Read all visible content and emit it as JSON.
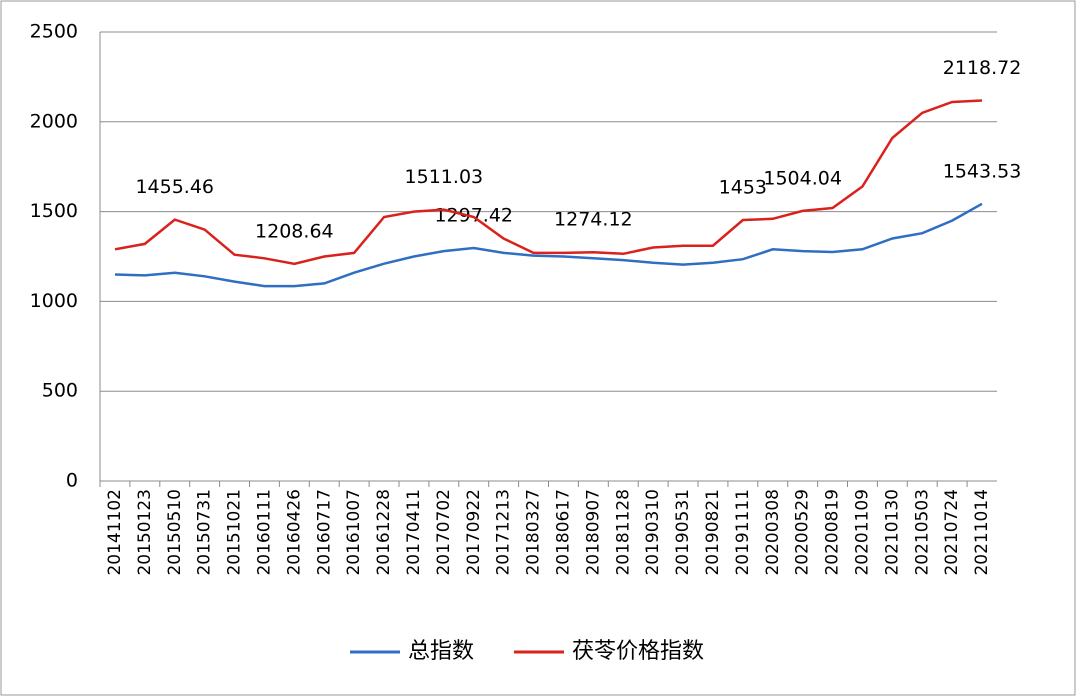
{
  "chart_data": {
    "type": "line",
    "categories": [
      "20141102",
      "20150123",
      "20150510",
      "20150731",
      "20151021",
      "20160111",
      "20160426",
      "20160717",
      "20161007",
      "20161228",
      "20170411",
      "20170702",
      "20170922",
      "20171213",
      "20180327",
      "20180617",
      "20180907",
      "20181128",
      "20190310",
      "20190531",
      "20190821",
      "20191111",
      "20200308",
      "20200529",
      "20200819",
      "20201109",
      "20210130",
      "20210503",
      "20210724",
      "20211014"
    ],
    "series": [
      {
        "name": "总指数",
        "color": "#2e6fc4",
        "label_color": "#2e6fc4",
        "values": [
          1150,
          1145,
          1160,
          1140,
          1110,
          1085,
          1085,
          1100,
          1160,
          1210,
          1250,
          1280,
          1297.42,
          1270,
          1255,
          1250,
          1240,
          1230,
          1215,
          1205,
          1215,
          1235,
          1290,
          1280,
          1275,
          1290,
          1350,
          1380,
          1450,
          1543.53
        ],
        "value_labels": [
          null,
          null,
          null,
          null,
          null,
          null,
          null,
          null,
          null,
          null,
          null,
          null,
          "1297.42",
          null,
          null,
          null,
          null,
          null,
          null,
          null,
          null,
          null,
          null,
          null,
          null,
          null,
          null,
          null,
          null,
          "1543.53"
        ]
      },
      {
        "name": "茯苓价格指数",
        "color": "#d9221c",
        "label_color": "#000000",
        "values": [
          1290,
          1320,
          1455.46,
          1400,
          1260,
          1240,
          1208.64,
          1250,
          1270,
          1470,
          1500,
          1511.03,
          1470,
          1350,
          1270,
          1270,
          1274.12,
          1265,
          1300,
          1310,
          1310,
          1453,
          1460,
          1504.04,
          1520,
          1640,
          1910,
          2050,
          2110,
          2118.72
        ],
        "value_labels": [
          null,
          null,
          "1455.46",
          null,
          null,
          null,
          "1208.64",
          null,
          null,
          null,
          null,
          "1511.03",
          null,
          null,
          null,
          null,
          "1274.12",
          null,
          null,
          null,
          null,
          "1453",
          null,
          "1504.04",
          null,
          null,
          null,
          null,
          null,
          "2118.72"
        ]
      }
    ],
    "ylim": [
      0,
      2500
    ],
    "yticks": [
      0,
      500,
      1000,
      1500,
      2000,
      2500
    ],
    "grid": true,
    "legend": "bottom"
  }
}
